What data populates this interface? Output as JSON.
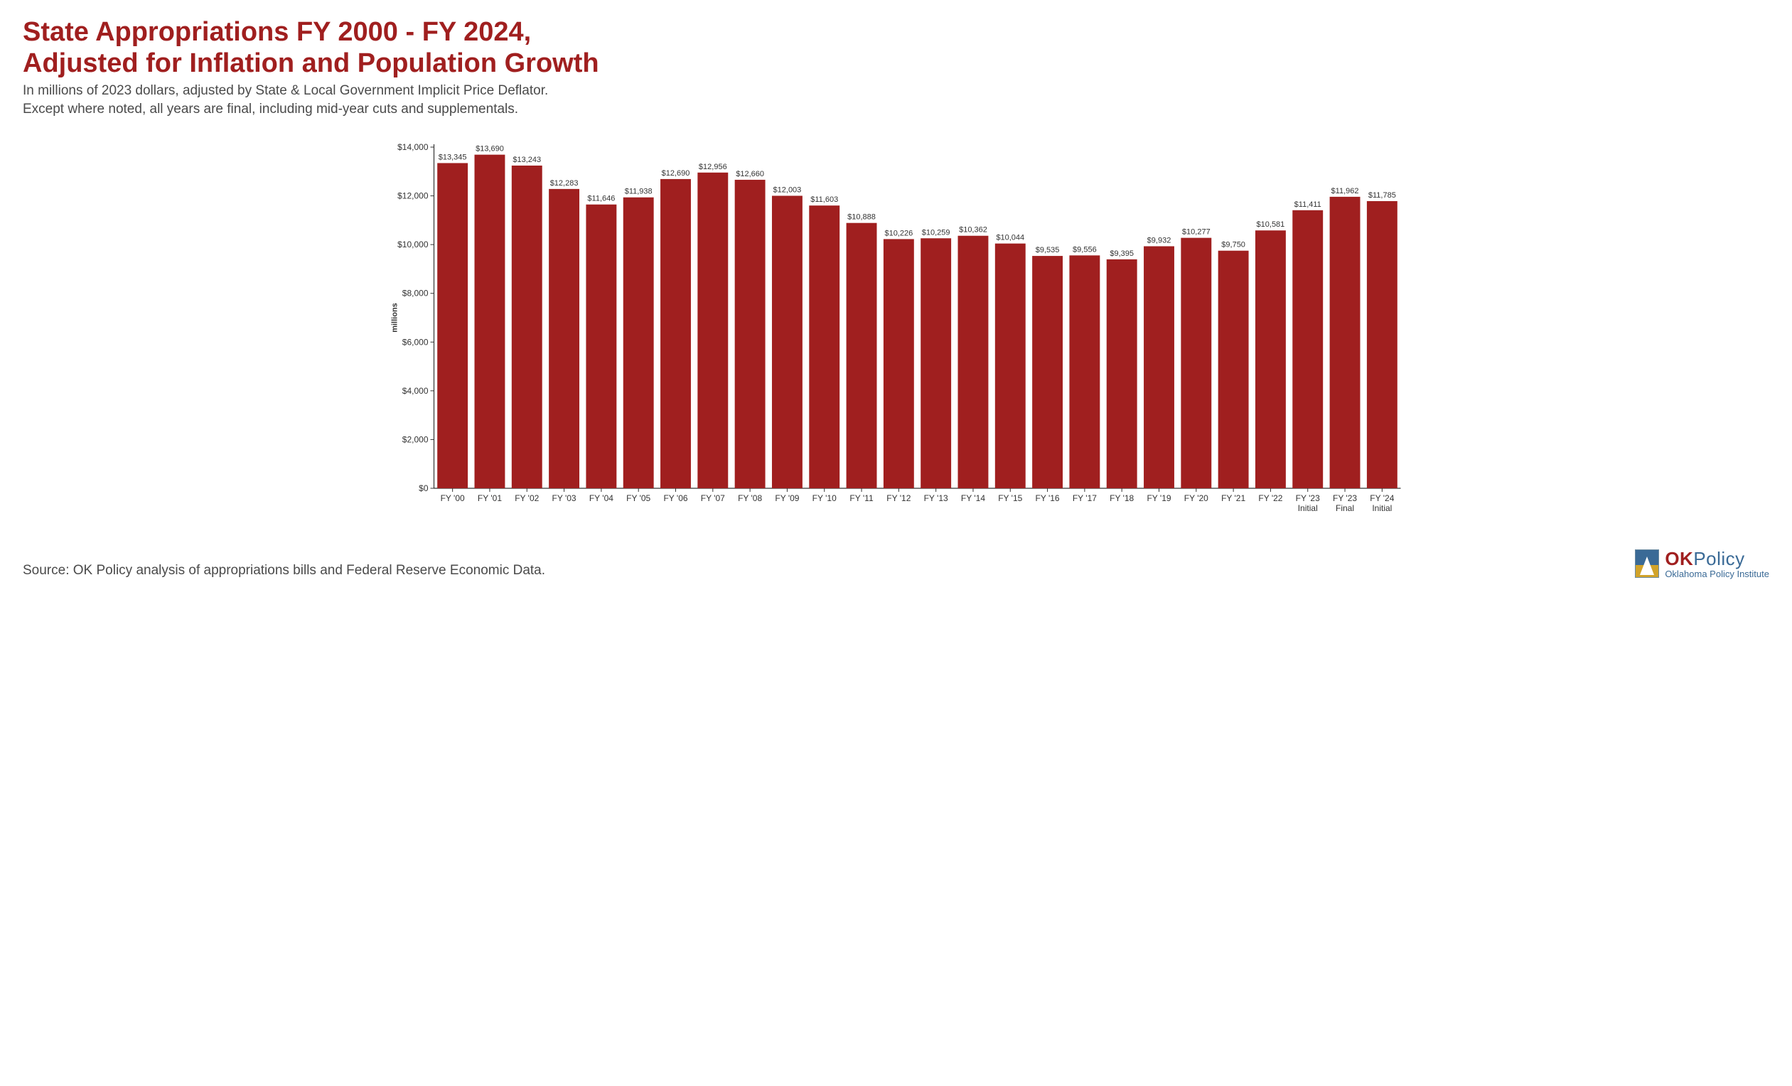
{
  "title_line1": "State Appropriations FY 2000 - FY 2024,",
  "title_line2": "Adjusted for Inflation and Population Growth",
  "subtitle_line1": "In millions of 2023 dollars, adjusted by State & Local Government Implicit Price Deflator.",
  "subtitle_line2": "Except where noted, all years are final, including mid-year cuts and supplementals.",
  "source": "Source: OK Policy analysis of appropriations bills and Federal Reserve Economic Data.",
  "logo": {
    "brand_ok": "OK",
    "brand_policy": "Policy",
    "tagline": "Oklahoma Policy Institute"
  },
  "chart": {
    "type": "bar",
    "ylabel": "millions",
    "ylabel_fontsize": 11,
    "ylim": [
      0,
      14000
    ],
    "ytick_step": 2000,
    "ytick_prefix": "$",
    "ytick_format": "comma",
    "xtick_fontsize": 12,
    "ytick_fontsize": 12,
    "value_label_fontsize": 11,
    "value_label_prefix": "$",
    "bar_color": "#a01f1f",
    "axis_color": "#333333",
    "tick_color": "#666666",
    "text_color": "#333333",
    "background_color": "#ffffff",
    "bar_width_ratio": 0.82,
    "categories": [
      "FY '00",
      "FY '01",
      "FY '02",
      "FY '03",
      "FY '04",
      "FY '05",
      "FY '06",
      "FY '07",
      "FY '08",
      "FY '09",
      "FY '10",
      "FY '11",
      "FY '12",
      "FY '13",
      "FY '14",
      "FY '15",
      "FY '16",
      "FY '17",
      "FY '18",
      "FY '19",
      "FY '20",
      "FY '21",
      "FY '22",
      "FY '23\nInitial",
      "FY '23\nFinal",
      "FY '24\nInitial"
    ],
    "values": [
      13345,
      13690,
      13243,
      12283,
      11646,
      11938,
      12690,
      12956,
      12660,
      12003,
      11603,
      10888,
      10226,
      10259,
      10362,
      10044,
      9535,
      9556,
      9395,
      9932,
      10277,
      9750,
      10581,
      11411,
      11962,
      11785
    ]
  }
}
